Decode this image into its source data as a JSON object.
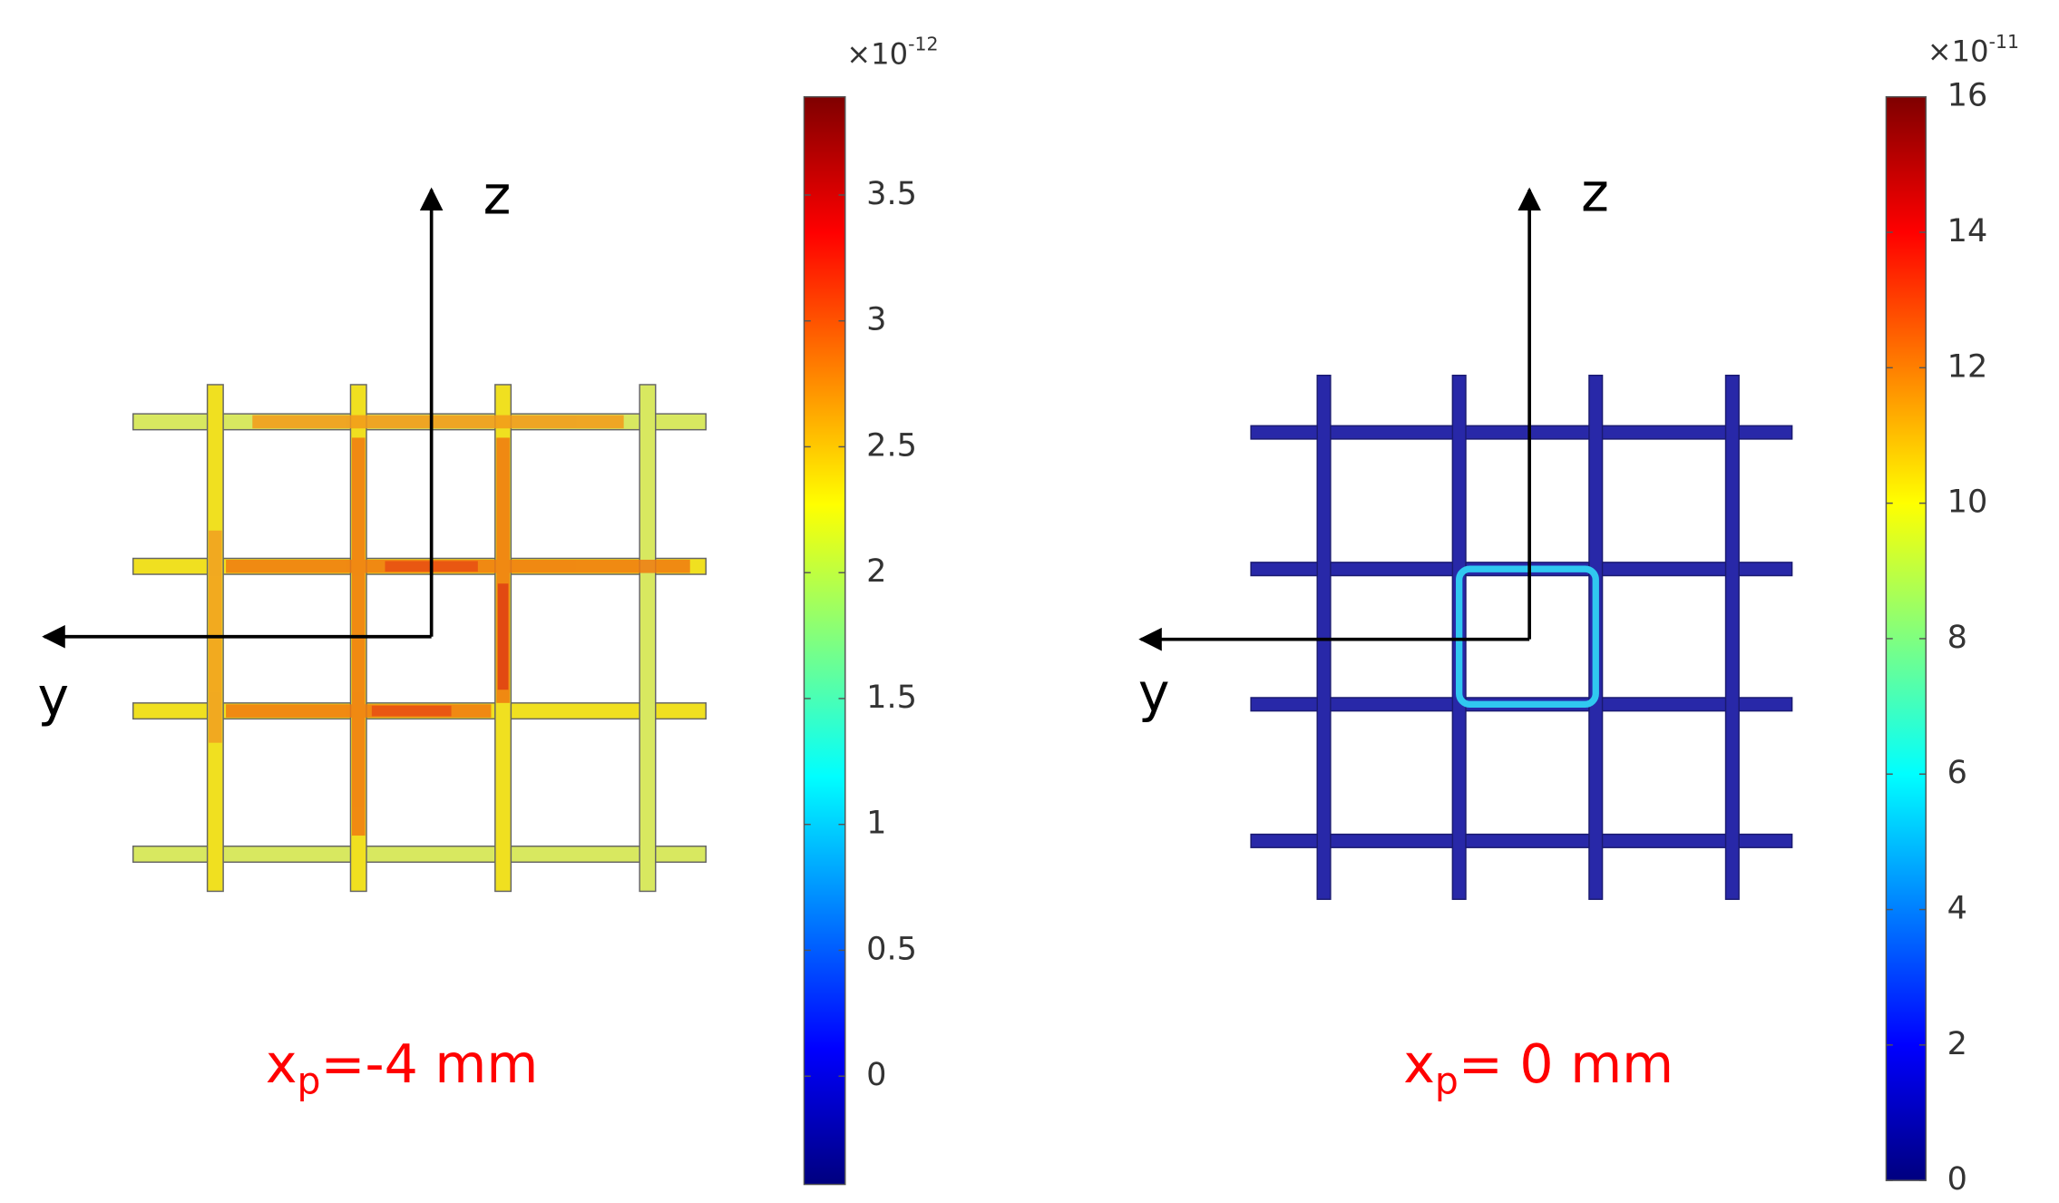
{
  "panels": [
    {
      "axis_labels": {
        "z": "z",
        "y": "y"
      },
      "caption": {
        "main": "x",
        "sub": "p",
        "rest": "=-4 mm"
      },
      "colorbar": {
        "multiplier": {
          "base": "×10",
          "exponent": "-12"
        },
        "range": [
          -0.43,
          3.89
        ],
        "ticks": [
          0,
          0.5,
          1,
          1.5,
          2,
          2.5,
          3,
          3.5
        ]
      }
    },
    {
      "axis_labels": {
        "z": "z",
        "y": "y"
      },
      "caption": {
        "main": "x",
        "sub": "p",
        "rest": "= 0 mm"
      },
      "colorbar": {
        "multiplier": {
          "base": "×10",
          "exponent": "-11"
        },
        "range": [
          0,
          16
        ],
        "ticks": [
          0,
          2,
          4,
          6,
          8,
          10,
          12,
          14,
          16
        ]
      }
    }
  ]
}
